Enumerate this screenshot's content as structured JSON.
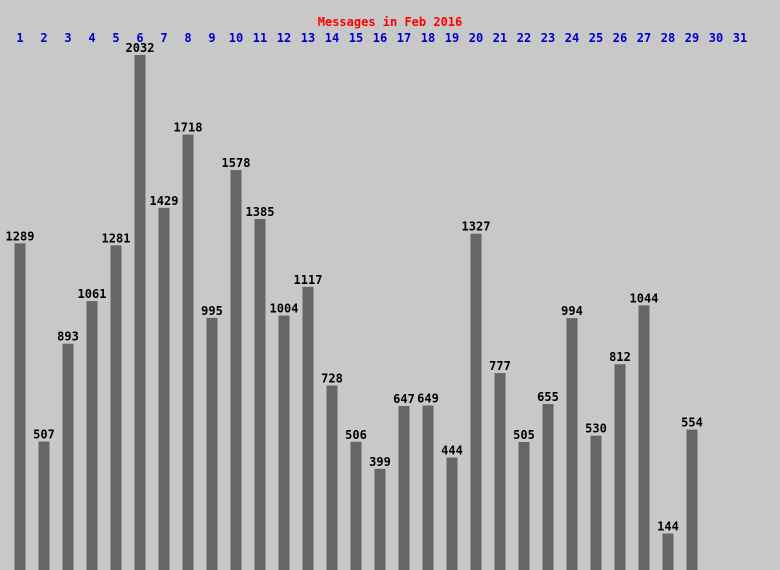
{
  "chart_data": {
    "type": "bar",
    "title": "Messages in Feb 2016",
    "categories": [
      "1",
      "2",
      "3",
      "4",
      "5",
      "6",
      "7",
      "8",
      "9",
      "10",
      "11",
      "12",
      "13",
      "14",
      "15",
      "16",
      "17",
      "18",
      "19",
      "20",
      "21",
      "22",
      "23",
      "24",
      "25",
      "26",
      "27",
      "28",
      "29",
      "30",
      "31"
    ],
    "values": [
      1289,
      507,
      893,
      1061,
      1281,
      2032,
      1429,
      1718,
      995,
      1578,
      1385,
      1004,
      1117,
      728,
      506,
      399,
      647,
      649,
      444,
      1327,
      777,
      505,
      655,
      994,
      530,
      812,
      1044,
      144,
      554,
      null,
      null
    ],
    "xlabel": "",
    "ylabel": "",
    "grid": false,
    "colors": {
      "background": "#c8c8c8",
      "bar": "#666666",
      "title": "#ff0000",
      "day_label": "#0000cc",
      "value_label": "#000000"
    }
  }
}
